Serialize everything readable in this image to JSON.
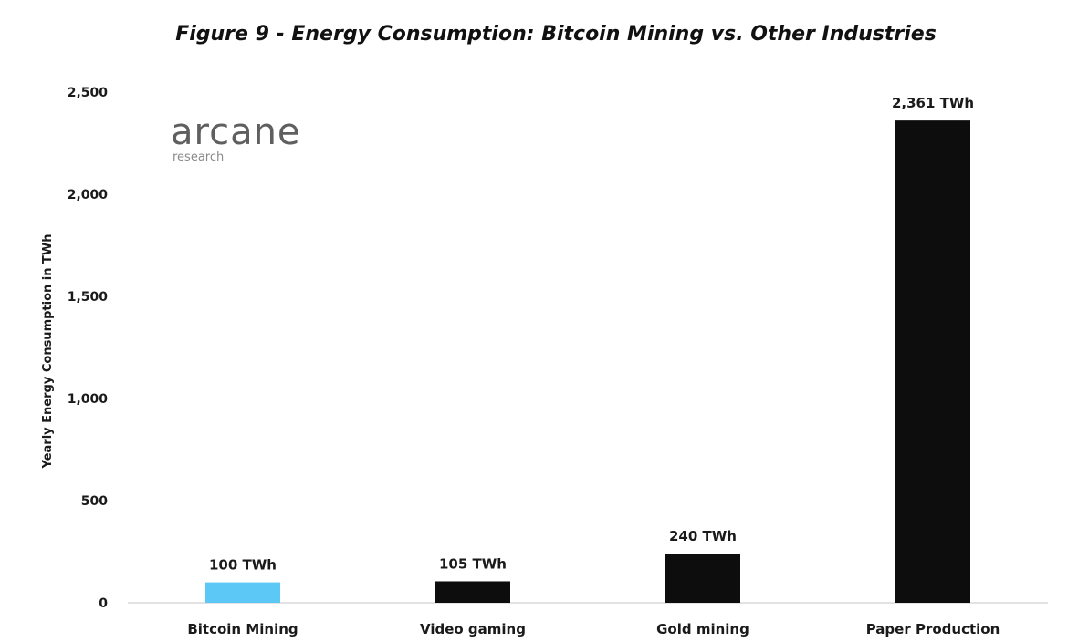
{
  "chart_data": {
    "type": "bar",
    "title": "Figure 9 - Energy Consumption: Bitcoin Mining vs. Other Industries",
    "ylabel": "Yearly Energy Consumption in TWh",
    "xlabel": "",
    "categories": [
      "Bitcoin Mining",
      "Video gaming",
      "Gold mining",
      "Paper Production"
    ],
    "values": [
      100,
      105,
      240,
      2361
    ],
    "data_labels": [
      "100 TWh",
      "105 TWh",
      "240 TWh",
      "2,361 TWh"
    ],
    "bar_colors": [
      "#5bc8f5",
      "#0d0d0d",
      "#0d0d0d",
      "#0d0d0d"
    ],
    "ylim": [
      0,
      2500
    ],
    "yticks": [
      0,
      500,
      1000,
      1500,
      2000,
      2500
    ],
    "ytick_labels": [
      "0",
      "500",
      "1,000",
      "1,500",
      "2,000",
      "2,500"
    ],
    "grid": false,
    "legend": "none"
  },
  "logo": {
    "name": "arcane",
    "subtitle": "research"
  },
  "colors": {
    "axis_line": "#d8d8d8",
    "text": "#1a1a1a"
  }
}
